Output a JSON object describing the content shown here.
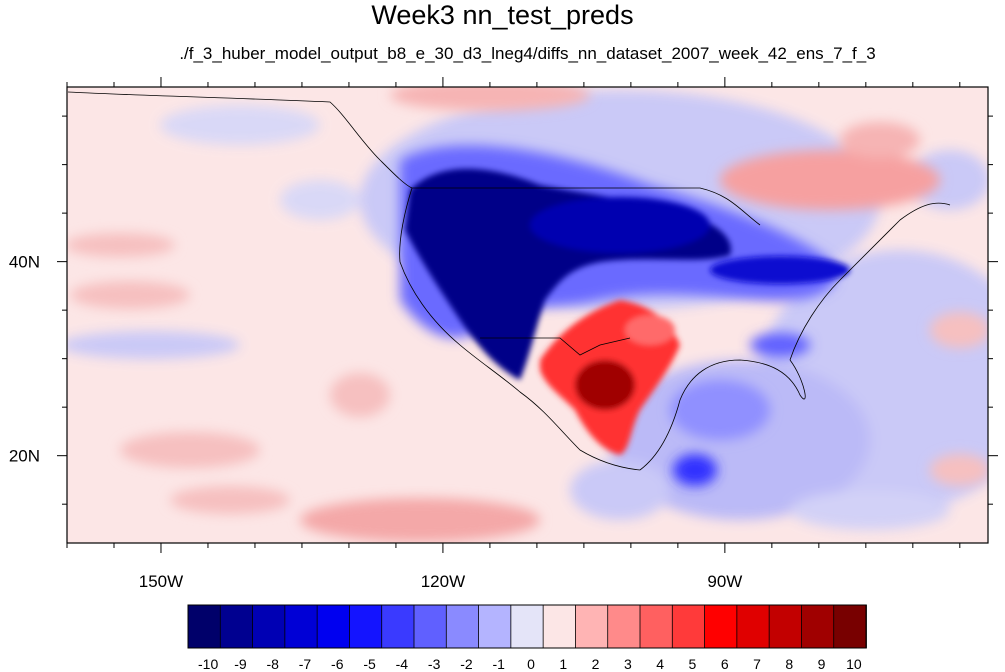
{
  "title": "Week3 nn_test_preds",
  "subtitle": "./f_3_huber_model_output_b8_e_30_d3_lneg4/diffs_nn_dataset_2007_week_42_ens_7_f_3",
  "map": {
    "lon_range": [
      -160,
      -62
    ],
    "lat_range": [
      11,
      58
    ],
    "x_ticks": [
      {
        "lon": -150,
        "label": "150W"
      },
      {
        "lon": -120,
        "label": "120W"
      },
      {
        "lon": -90,
        "label": "90W"
      }
    ],
    "y_ticks": [
      {
        "lat": 20,
        "label": "20N"
      },
      {
        "lat": 40,
        "label": "40N"
      }
    ],
    "background_color": "#fce6e6"
  },
  "colorbar": {
    "labels": [
      "-10",
      "-9",
      "-8",
      "-7",
      "-6",
      "-5",
      "-4",
      "-3",
      "-2",
      "-1",
      "0",
      "1",
      "2",
      "3",
      "4",
      "5",
      "6",
      "7",
      "8",
      "9",
      "10"
    ],
    "colors": [
      "#00006a",
      "#000090",
      "#0000b4",
      "#0000d6",
      "#0000f0",
      "#1414ff",
      "#3a3aff",
      "#6060ff",
      "#8a8aff",
      "#b4b4ff",
      "#e4e4f8",
      "#fce6e6",
      "#ffb4b4",
      "#ff8a8a",
      "#ff6060",
      "#ff3a3a",
      "#ff0000",
      "#e00000",
      "#c20000",
      "#a00000",
      "#780000"
    ]
  }
}
